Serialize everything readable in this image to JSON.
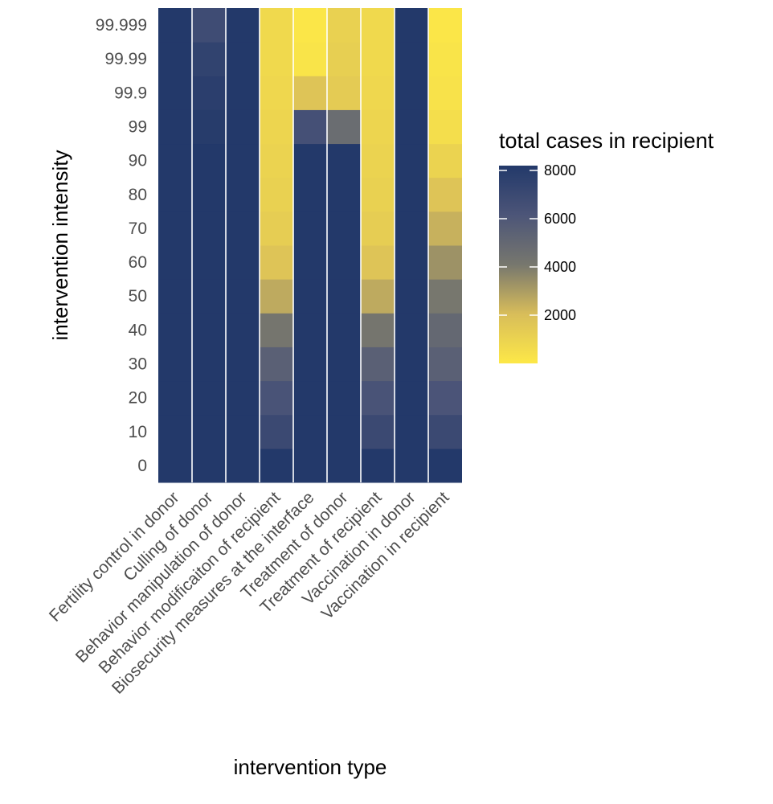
{
  "chart_data": {
    "type": "heatmap",
    "title": "",
    "xlabel": "intervention type",
    "ylabel": "intervention intensity",
    "x": [
      "Fertility control in donor",
      "Culling of donor",
      "Behavior manipulation of donor",
      "Behavior modificaiton of recipient",
      "Biosecurity measures at the interface",
      "Treatment of donor",
      "Treatment of recipient",
      "Vaccination in donor",
      "Vaccination in recipient"
    ],
    "y": [
      "0",
      "10",
      "20",
      "30",
      "40",
      "50",
      "60",
      "70",
      "80",
      "90",
      "99",
      "99.9",
      "99.99",
      "99.999"
    ],
    "values": [
      [
        8200,
        8200,
        8200,
        8200,
        8200,
        8200,
        8200,
        8200,
        8200
      ],
      [
        8200,
        8200,
        8200,
        7000,
        8200,
        8200,
        7000,
        8200,
        7000
      ],
      [
        8200,
        8200,
        8200,
        6300,
        8200,
        8200,
        6300,
        8200,
        6200
      ],
      [
        8200,
        8200,
        8200,
        5500,
        8200,
        8200,
        5500,
        8200,
        5500
      ],
      [
        8200,
        8200,
        8200,
        4200,
        8200,
        8200,
        4200,
        8200,
        5000
      ],
      [
        8200,
        8200,
        8200,
        2600,
        8200,
        8200,
        2600,
        8200,
        4100
      ],
      [
        8200,
        8200,
        8200,
        1700,
        8200,
        8200,
        1700,
        8200,
        3300
      ],
      [
        8200,
        8200,
        8200,
        1300,
        8200,
        8200,
        1300,
        8200,
        2400
      ],
      [
        8200,
        8200,
        8200,
        1100,
        8200,
        8200,
        1100,
        8200,
        1700
      ],
      [
        8200,
        8200,
        8200,
        1000,
        8200,
        8200,
        1000,
        8200,
        1000
      ],
      [
        8200,
        8000,
        8200,
        900,
        6500,
        4700,
        900,
        8200,
        500
      ],
      [
        8200,
        7800,
        8200,
        800,
        1700,
        1400,
        800,
        8200,
        300
      ],
      [
        8200,
        7500,
        8200,
        700,
        200,
        1200,
        700,
        8200,
        200
      ],
      [
        8200,
        6800,
        8200,
        700,
        100,
        1100,
        700,
        8200,
        100
      ]
    ],
    "colorscale": [
      "#fde847",
      "#23396a"
    ],
    "legend": {
      "title": "total cases in recipient",
      "ticks": [
        2000,
        4000,
        6000,
        8000
      ],
      "tick_labels": [
        "2000",
        "4000",
        "6000",
        "8000"
      ],
      "min": 0,
      "max": 8200
    },
    "grid": false,
    "legend_position": "right"
  }
}
